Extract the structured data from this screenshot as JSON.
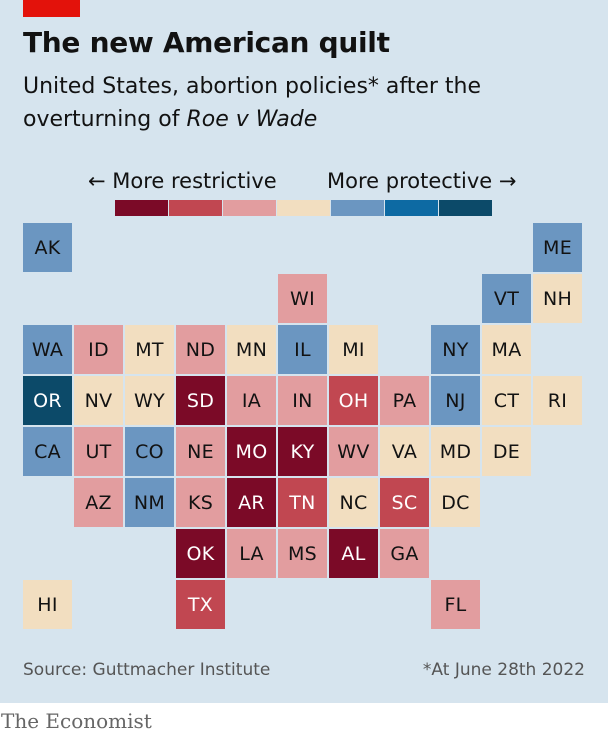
{
  "header": {
    "title": "The new American quilt",
    "subtitle_plain": "United States, abortion policies* after the overturning of ",
    "subtitle_italic": "Roe v Wade"
  },
  "legend": {
    "left_label": "← More restrictive",
    "right_label": "More protective →",
    "colors": [
      "#7b0a27",
      "#c14751",
      "#e29d9f",
      "#f2dec0",
      "#6b96c1",
      "#0d6aa3",
      "#0c4a69"
    ]
  },
  "chart_data": {
    "type": "heatmap",
    "description_of_scale": "policy level 0 = most restrictive … 6 = most protective",
    "states": [
      {
        "abbr": "AK",
        "col": 0,
        "row": 0,
        "level": 4
      },
      {
        "abbr": "ME",
        "col": 10,
        "row": 0,
        "level": 4
      },
      {
        "abbr": "WI",
        "col": 5,
        "row": 1,
        "level": 2
      },
      {
        "abbr": "VT",
        "col": 9,
        "row": 1,
        "level": 4
      },
      {
        "abbr": "NH",
        "col": 10,
        "row": 1,
        "level": 3
      },
      {
        "abbr": "WA",
        "col": 0,
        "row": 2,
        "level": 4
      },
      {
        "abbr": "ID",
        "col": 1,
        "row": 2,
        "level": 2
      },
      {
        "abbr": "MT",
        "col": 2,
        "row": 2,
        "level": 3
      },
      {
        "abbr": "ND",
        "col": 3,
        "row": 2,
        "level": 2
      },
      {
        "abbr": "MN",
        "col": 4,
        "row": 2,
        "level": 3
      },
      {
        "abbr": "IL",
        "col": 5,
        "row": 2,
        "level": 4
      },
      {
        "abbr": "MI",
        "col": 6,
        "row": 2,
        "level": 3
      },
      {
        "abbr": "NY",
        "col": 8,
        "row": 2,
        "level": 4
      },
      {
        "abbr": "MA",
        "col": 9,
        "row": 2,
        "level": 3
      },
      {
        "abbr": "OR",
        "col": 0,
        "row": 3,
        "level": 6
      },
      {
        "abbr": "NV",
        "col": 1,
        "row": 3,
        "level": 3
      },
      {
        "abbr": "WY",
        "col": 2,
        "row": 3,
        "level": 3
      },
      {
        "abbr": "SD",
        "col": 3,
        "row": 3,
        "level": 0
      },
      {
        "abbr": "IA",
        "col": 4,
        "row": 3,
        "level": 2
      },
      {
        "abbr": "IN",
        "col": 5,
        "row": 3,
        "level": 2
      },
      {
        "abbr": "OH",
        "col": 6,
        "row": 3,
        "level": 1
      },
      {
        "abbr": "PA",
        "col": 7,
        "row": 3,
        "level": 2
      },
      {
        "abbr": "NJ",
        "col": 8,
        "row": 3,
        "level": 4
      },
      {
        "abbr": "CT",
        "col": 9,
        "row": 3,
        "level": 3
      },
      {
        "abbr": "RI",
        "col": 10,
        "row": 3,
        "level": 3
      },
      {
        "abbr": "CA",
        "col": 0,
        "row": 4,
        "level": 4
      },
      {
        "abbr": "UT",
        "col": 1,
        "row": 4,
        "level": 2
      },
      {
        "abbr": "CO",
        "col": 2,
        "row": 4,
        "level": 4
      },
      {
        "abbr": "NE",
        "col": 3,
        "row": 4,
        "level": 2
      },
      {
        "abbr": "MO",
        "col": 4,
        "row": 4,
        "level": 0
      },
      {
        "abbr": "KY",
        "col": 5,
        "row": 4,
        "level": 0
      },
      {
        "abbr": "WV",
        "col": 6,
        "row": 4,
        "level": 2
      },
      {
        "abbr": "VA",
        "col": 7,
        "row": 4,
        "level": 3
      },
      {
        "abbr": "MD",
        "col": 8,
        "row": 4,
        "level": 3
      },
      {
        "abbr": "DE",
        "col": 9,
        "row": 4,
        "level": 3
      },
      {
        "abbr": "AZ",
        "col": 1,
        "row": 5,
        "level": 2
      },
      {
        "abbr": "NM",
        "col": 2,
        "row": 5,
        "level": 4
      },
      {
        "abbr": "KS",
        "col": 3,
        "row": 5,
        "level": 2
      },
      {
        "abbr": "AR",
        "col": 4,
        "row": 5,
        "level": 0
      },
      {
        "abbr": "TN",
        "col": 5,
        "row": 5,
        "level": 1
      },
      {
        "abbr": "NC",
        "col": 6,
        "row": 5,
        "level": 3
      },
      {
        "abbr": "SC",
        "col": 7,
        "row": 5,
        "level": 1
      },
      {
        "abbr": "DC",
        "col": 8,
        "row": 5,
        "level": 3
      },
      {
        "abbr": "OK",
        "col": 3,
        "row": 6,
        "level": 0
      },
      {
        "abbr": "LA",
        "col": 4,
        "row": 6,
        "level": 2
      },
      {
        "abbr": "MS",
        "col": 5,
        "row": 6,
        "level": 2
      },
      {
        "abbr": "AL",
        "col": 6,
        "row": 6,
        "level": 0
      },
      {
        "abbr": "GA",
        "col": 7,
        "row": 6,
        "level": 2
      },
      {
        "abbr": "HI",
        "col": 0,
        "row": 7,
        "level": 3
      },
      {
        "abbr": "TX",
        "col": 3,
        "row": 7,
        "level": 1
      },
      {
        "abbr": "FL",
        "col": 8,
        "row": 7,
        "level": 2
      }
    ]
  },
  "footer": {
    "source": "Source: Guttmacher Institute",
    "footnote": "*At June 28th 2022",
    "brand": "The Economist"
  }
}
